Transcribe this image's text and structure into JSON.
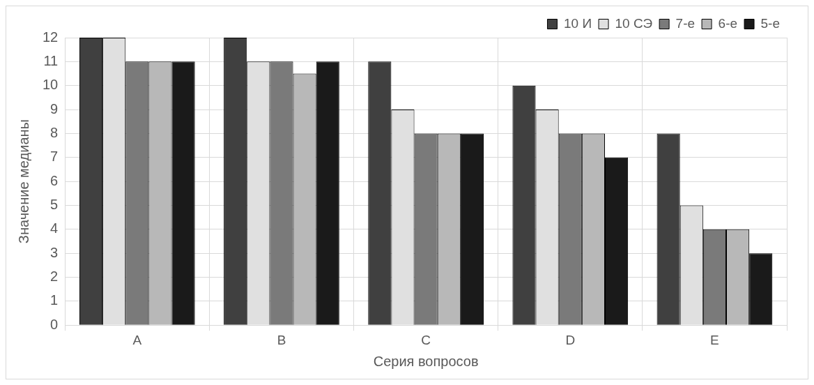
{
  "chart_data": {
    "type": "bar",
    "xlabel": "Серия вопросов",
    "ylabel": "Значение медианы",
    "categories": [
      "A",
      "B",
      "C",
      "D",
      "E"
    ],
    "series": [
      {
        "name": "10 И",
        "color": "#404040",
        "values": [
          12,
          12,
          11,
          10,
          8
        ]
      },
      {
        "name": "10 СЭ",
        "color": "#e0e0e0",
        "values": [
          12,
          11,
          9,
          9,
          5
        ]
      },
      {
        "name": "7-е",
        "color": "#7a7a7a",
        "values": [
          11,
          11,
          8,
          8,
          4
        ]
      },
      {
        "name": "6-е",
        "color": "#b8b8b8",
        "values": [
          11,
          10.5,
          8,
          8,
          4
        ]
      },
      {
        "name": "5-е",
        "color": "#1a1a1a",
        "values": [
          11,
          11,
          8,
          7,
          3
        ]
      }
    ],
    "ylim": [
      0,
      12
    ],
    "yticks": [
      0,
      1,
      2,
      3,
      4,
      5,
      6,
      7,
      8,
      9,
      10,
      11,
      12
    ],
    "grid": true,
    "legend": "top right"
  }
}
